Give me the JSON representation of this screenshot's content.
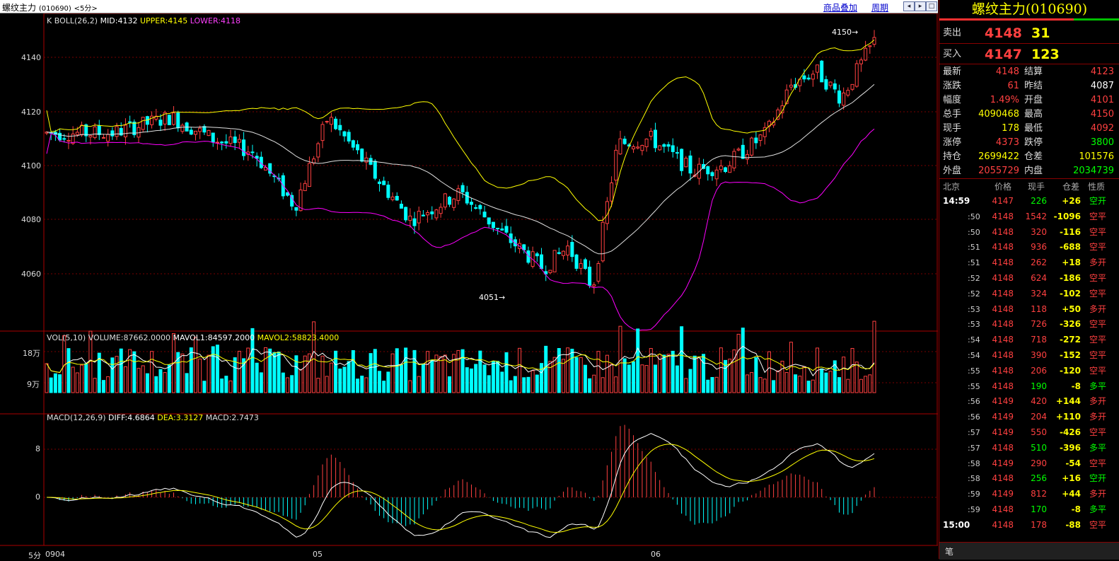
{
  "window": {
    "title": "螺纹主力",
    "code": "(010690)",
    "period": "<5分>",
    "overlay_link": "商品叠加",
    "cycle_link": "周期"
  },
  "boll": {
    "label": "K   BOLL(26,2)",
    "mid": "MID:4132",
    "upper": "UPPER:4145",
    "lower": "LOWER:4118",
    "y_ticks": [
      "4140",
      "4120",
      "4100",
      "4080",
      "4060"
    ],
    "high_mark": "4150",
    "low_mark": "4051",
    "colors": {
      "mid": "#e0e0e0",
      "upper": "#ffff00",
      "lower": "#ff00ff",
      "up": "#ff4040",
      "down": "#00ffff"
    }
  },
  "vol": {
    "label": "VOL(5,10)",
    "volume": "VOLUME:87662.0000",
    "mavol1": "MAVOL1:84597.2000",
    "mavol2": "MAVOL2:58823.4000",
    "y_ticks": [
      "18万",
      "9万"
    ]
  },
  "macd": {
    "label": "MACD(12,26,9)",
    "diff": "DIFF:4.6864",
    "dea": "DEA:3.3127",
    "macd": "MACD:2.7473",
    "y_ticks": [
      "8",
      "0"
    ]
  },
  "xaxis": {
    "period_tab": "5分",
    "labels": [
      "0904",
      "05",
      "06"
    ]
  },
  "quote": {
    "title": "螺纹主力(010690)",
    "sell_label": "卖出",
    "sell_price": "4148",
    "sell_vol": "31",
    "buy_label": "买入",
    "buy_price": "4147",
    "buy_vol": "123",
    "stats": [
      {
        "l1": "最新",
        "v1": "4148",
        "c1": "#ff4040",
        "l2": "结算",
        "v2": "4123",
        "c2": "#ff4040"
      },
      {
        "l1": "涨跌",
        "v1": "61",
        "c1": "#ff4040",
        "l2": "昨结",
        "v2": "4087",
        "c2": "#ffffff"
      },
      {
        "l1": "幅度",
        "v1": "1.49%",
        "c1": "#ff4040",
        "l2": "开盘",
        "v2": "4101",
        "c2": "#ff4040"
      },
      {
        "l1": "总手",
        "v1": "4090468",
        "c1": "#ffff00",
        "l2": "最高",
        "v2": "4150",
        "c2": "#ff4040"
      },
      {
        "l1": "现手",
        "v1": "178",
        "c1": "#ffff00",
        "l2": "最低",
        "v2": "4092",
        "c2": "#ff4040"
      },
      {
        "l1": "涨停",
        "v1": "4373",
        "c1": "#ff4040",
        "l2": "跌停",
        "v2": "3800",
        "c2": "#00ff00"
      },
      {
        "l1": "持仓",
        "v1": "2699422",
        "c1": "#ffff00",
        "l2": "仓差",
        "v2": "101576",
        "c2": "#ffff00"
      },
      {
        "l1": "外盘",
        "v1": "2055729",
        "c1": "#ff4040",
        "l2": "内盘",
        "v2": "2034739",
        "c2": "#00ff00"
      }
    ],
    "tick_headers": [
      "北京",
      "价格",
      "现手",
      "仓差",
      "性质"
    ],
    "ticks": [
      {
        "t": "14:59",
        "p": "4147",
        "v": "226",
        "d": "+26",
        "n": "空开",
        "vc": "#00ff00",
        "dc": "#ffff00",
        "nc": "#00ff00"
      },
      {
        "t": ":50",
        "p": "4148",
        "v": "1542",
        "d": "-1096",
        "n": "空平",
        "vc": "#ff4040",
        "dc": "#ffff00",
        "nc": "#ff4040"
      },
      {
        "t": ":50",
        "p": "4148",
        "v": "320",
        "d": "-116",
        "n": "空平",
        "vc": "#ff4040",
        "dc": "#ffff00",
        "nc": "#ff4040"
      },
      {
        "t": ":51",
        "p": "4148",
        "v": "936",
        "d": "-688",
        "n": "空平",
        "vc": "#ff4040",
        "dc": "#ffff00",
        "nc": "#ff4040"
      },
      {
        "t": ":51",
        "p": "4148",
        "v": "262",
        "d": "+18",
        "n": "多开",
        "vc": "#ff4040",
        "dc": "#ffff00",
        "nc": "#ff4040"
      },
      {
        "t": ":52",
        "p": "4148",
        "v": "624",
        "d": "-186",
        "n": "空平",
        "vc": "#ff4040",
        "dc": "#ffff00",
        "nc": "#ff4040"
      },
      {
        "t": ":52",
        "p": "4148",
        "v": "324",
        "d": "-102",
        "n": "空平",
        "vc": "#ff4040",
        "dc": "#ffff00",
        "nc": "#ff4040"
      },
      {
        "t": ":53",
        "p": "4148",
        "v": "118",
        "d": "+50",
        "n": "多开",
        "vc": "#ff4040",
        "dc": "#ffff00",
        "nc": "#ff4040"
      },
      {
        "t": ":53",
        "p": "4148",
        "v": "726",
        "d": "-326",
        "n": "空平",
        "vc": "#ff4040",
        "dc": "#ffff00",
        "nc": "#ff4040"
      },
      {
        "t": ":54",
        "p": "4148",
        "v": "718",
        "d": "-272",
        "n": "空平",
        "vc": "#ff4040",
        "dc": "#ffff00",
        "nc": "#ff4040"
      },
      {
        "t": ":54",
        "p": "4148",
        "v": "390",
        "d": "-152",
        "n": "空平",
        "vc": "#ff4040",
        "dc": "#ffff00",
        "nc": "#ff4040"
      },
      {
        "t": ":55",
        "p": "4148",
        "v": "206",
        "d": "-120",
        "n": "空平",
        "vc": "#ff4040",
        "dc": "#ffff00",
        "nc": "#ff4040"
      },
      {
        "t": ":55",
        "p": "4148",
        "v": "190",
        "d": "-8",
        "n": "多平",
        "vc": "#00ff00",
        "dc": "#ffff00",
        "nc": "#00ff00"
      },
      {
        "t": ":56",
        "p": "4149",
        "v": "420",
        "d": "+144",
        "n": "多开",
        "vc": "#ff4040",
        "dc": "#ffff00",
        "nc": "#ff4040"
      },
      {
        "t": ":56",
        "p": "4149",
        "v": "204",
        "d": "+110",
        "n": "多开",
        "vc": "#ff4040",
        "dc": "#ffff00",
        "nc": "#ff4040"
      },
      {
        "t": ":57",
        "p": "4149",
        "v": "550",
        "d": "-426",
        "n": "空平",
        "vc": "#ff4040",
        "dc": "#ffff00",
        "nc": "#ff4040"
      },
      {
        "t": ":57",
        "p": "4148",
        "v": "510",
        "d": "-396",
        "n": "多平",
        "vc": "#00ff00",
        "dc": "#ffff00",
        "nc": "#00ff00"
      },
      {
        "t": ":58",
        "p": "4149",
        "v": "290",
        "d": "-54",
        "n": "空平",
        "vc": "#ff4040",
        "dc": "#ffff00",
        "nc": "#ff4040"
      },
      {
        "t": ":58",
        "p": "4148",
        "v": "256",
        "d": "+16",
        "n": "空开",
        "vc": "#00ff00",
        "dc": "#ffff00",
        "nc": "#00ff00"
      },
      {
        "t": ":59",
        "p": "4149",
        "v": "812",
        "d": "+44",
        "n": "多开",
        "vc": "#ff4040",
        "dc": "#ffff00",
        "nc": "#ff4040"
      },
      {
        "t": ":59",
        "p": "4148",
        "v": "170",
        "d": "-8",
        "n": "多平",
        "vc": "#00ff00",
        "dc": "#ffff00",
        "nc": "#00ff00"
      },
      {
        "t": "15:00",
        "p": "4148",
        "v": "178",
        "d": "-88",
        "n": "空平",
        "vc": "#ff4040",
        "dc": "#ffff00",
        "nc": "#ff4040"
      }
    ],
    "bottom_tab": "笔"
  }
}
